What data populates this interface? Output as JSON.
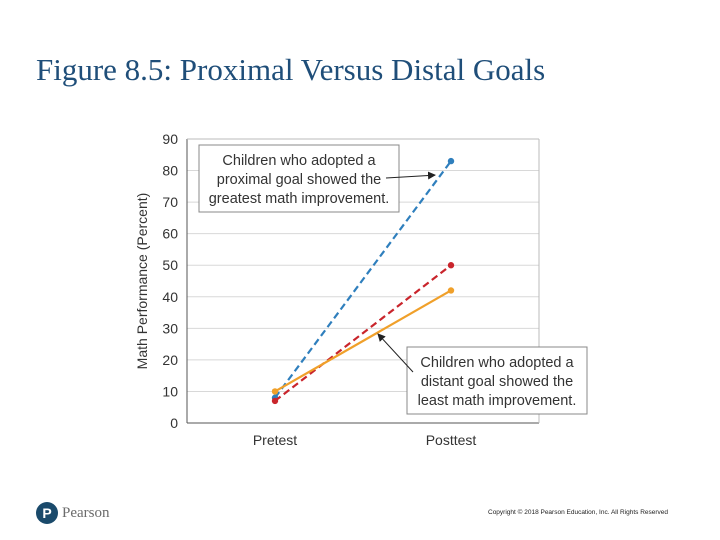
{
  "slide": {
    "title": "Figure 8.5: Proximal Versus Distal Goals",
    "logo_text": "Pearson",
    "logo_letter": "P",
    "copyright": "Copyright © 2018 Pearson Education, Inc. All Rights Reserved"
  },
  "chart_data": {
    "type": "line",
    "categories": [
      "Pretest",
      "Posttest"
    ],
    "ylabel": "Math Performance (Percent)",
    "ylim": [
      0,
      90
    ],
    "yticks": [
      0,
      10,
      20,
      30,
      40,
      50,
      60,
      70,
      80,
      90
    ],
    "grid": true,
    "series": [
      {
        "key": "proximal",
        "values": [
          8,
          83
        ],
        "color": "#2f7fbd",
        "dash": true
      },
      {
        "key": "distal",
        "values": [
          7,
          50
        ],
        "color": "#c9252c",
        "dash": true
      },
      {
        "key": "none",
        "values": [
          10,
          42
        ],
        "color": "#f0a02a",
        "dash": false
      }
    ],
    "annotations": [
      {
        "key": "proximal",
        "lines": [
          "Children who adopted a",
          "proximal goal showed the",
          "greatest math improvement."
        ]
      },
      {
        "key": "distal",
        "lines": [
          "Children who adopted a",
          "distant goal showed the",
          "least math improvement."
        ]
      }
    ]
  }
}
